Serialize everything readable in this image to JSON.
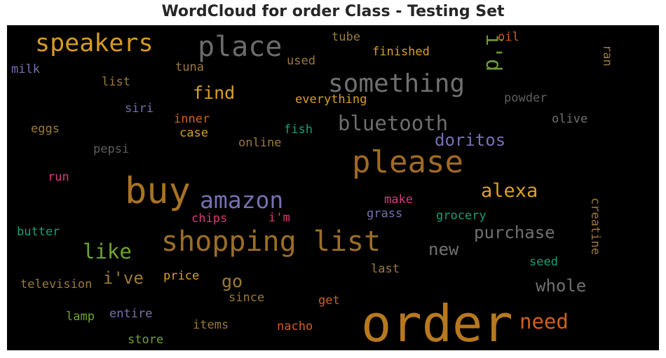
{
  "chart_data": {
    "type": "wordcloud",
    "title": "WordCloud for order Class - Testing Set",
    "background": "#000000",
    "words": [
      {
        "text": "order",
        "color": "#b7791f"
      },
      {
        "text": "buy",
        "color": "#a87323"
      },
      {
        "text": "shopping list",
        "color": "#9c6d28"
      },
      {
        "text": "please",
        "color": "#a06a25"
      },
      {
        "text": "place",
        "color": "#6b6b6b"
      },
      {
        "text": "something",
        "color": "#707070"
      },
      {
        "text": "speakers",
        "color": "#d69b1f"
      },
      {
        "text": "amazon",
        "color": "#7670b0"
      },
      {
        "text": "bluetooth",
        "color": "#6e6e6e"
      },
      {
        "text": "alexa",
        "color": "#dca31c"
      },
      {
        "text": "i'd",
        "color": "#6e9a3a"
      },
      {
        "text": "doritos",
        "color": "#7670b0"
      },
      {
        "text": "like",
        "color": "#6fa42f"
      },
      {
        "text": "need",
        "color": "#d35f17"
      },
      {
        "text": "purchase",
        "color": "#707070"
      },
      {
        "text": "find",
        "color": "#d9a01f"
      },
      {
        "text": "whole",
        "color": "#707070"
      },
      {
        "text": "new",
        "color": "#707070"
      },
      {
        "text": "i've",
        "color": "#9c7a38"
      },
      {
        "text": "go",
        "color": "#9c7a38"
      },
      {
        "text": "finished",
        "color": "#d9a01f"
      },
      {
        "text": "everything",
        "color": "#d9a01f"
      },
      {
        "text": "oil",
        "color": "#d35f17"
      },
      {
        "text": "tube",
        "color": "#9c7a38"
      },
      {
        "text": "ran",
        "color": "#9c7a38"
      },
      {
        "text": "powder",
        "color": "#5f5f5f"
      },
      {
        "text": "olive",
        "color": "#707070"
      },
      {
        "text": "milk",
        "color": "#7670b0"
      },
      {
        "text": "list",
        "color": "#9c7a38"
      },
      {
        "text": "tuna",
        "color": "#9c7a38"
      },
      {
        "text": "used",
        "color": "#9c7a38"
      },
      {
        "text": "siri",
        "color": "#7670b0"
      },
      {
        "text": "inner",
        "color": "#d35f17"
      },
      {
        "text": "case",
        "color": "#d9a01f"
      },
      {
        "text": "fish",
        "color": "#1b9e77"
      },
      {
        "text": "eggs",
        "color": "#9c7a38"
      },
      {
        "text": "pepsi",
        "color": "#5f5f5f"
      },
      {
        "text": "online",
        "color": "#9c7a38"
      },
      {
        "text": "run",
        "color": "#d63a7a"
      },
      {
        "text": "make",
        "color": "#d63a7a"
      },
      {
        "text": "grass",
        "color": "#7670b0"
      },
      {
        "text": "chips",
        "color": "#d63a7a"
      },
      {
        "text": "i'm",
        "color": "#d63a7a"
      },
      {
        "text": "grocery",
        "color": "#1b9e77"
      },
      {
        "text": "creatine",
        "color": "#9c7a38"
      },
      {
        "text": "butter",
        "color": "#1b9e77"
      },
      {
        "text": "seed",
        "color": "#1b9e77"
      },
      {
        "text": "last",
        "color": "#9c7a38"
      },
      {
        "text": "price",
        "color": "#d9a01f"
      },
      {
        "text": "television",
        "color": "#9c7a38"
      },
      {
        "text": "since",
        "color": "#9c7a38"
      },
      {
        "text": "get",
        "color": "#d35f17"
      },
      {
        "text": "lamp",
        "color": "#6fa42f"
      },
      {
        "text": "entire",
        "color": "#7670b0"
      },
      {
        "text": "items",
        "color": "#9c7a38"
      },
      {
        "text": "nacho",
        "color": "#d35f17"
      },
      {
        "text": "store",
        "color": "#6fa42f"
      }
    ]
  }
}
